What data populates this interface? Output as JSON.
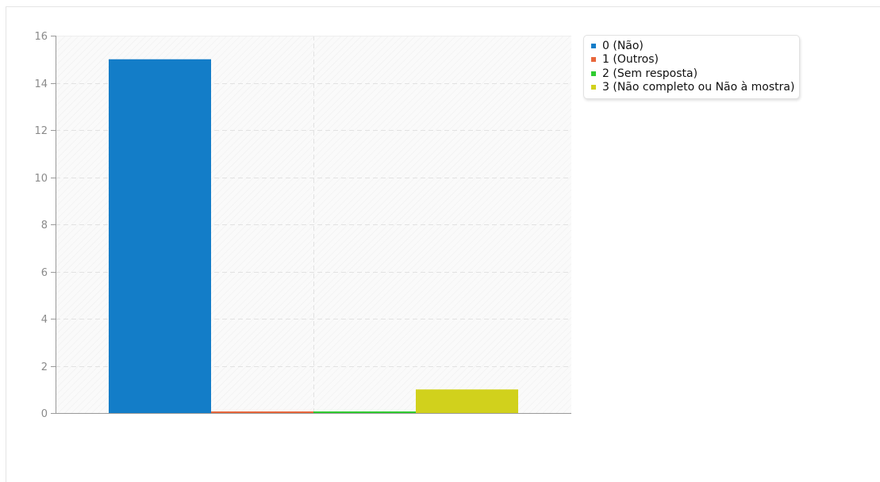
{
  "chart_data": {
    "type": "bar",
    "title": "",
    "xlabel": "",
    "ylabel": "",
    "ylim": [
      0,
      16
    ],
    "yticks": [
      0,
      2,
      4,
      6,
      8,
      10,
      12,
      14,
      16
    ],
    "grid": true,
    "legend_position": "right",
    "series": [
      {
        "name": "0 (Não)",
        "value": 15,
        "color": "#137dc8"
      },
      {
        "name": "1 (Outros)",
        "value": 0,
        "color": "#e8673c"
      },
      {
        "name": "2 (Sem resposta)",
        "value": 0,
        "color": "#2fcc30"
      },
      {
        "name": "3 (Não completo ou Não à mostra)",
        "value": 1,
        "color": "#d1d11c"
      }
    ]
  }
}
